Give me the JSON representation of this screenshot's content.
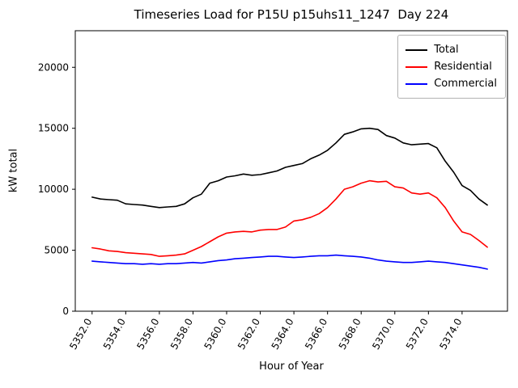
{
  "figure": {
    "title": "Timeseries Load for P15U p15uhs11_1247  Day 224",
    "xlabel": "Hour of Year",
    "ylabel": "kW total"
  },
  "chart_data": {
    "type": "line",
    "title": "Timeseries Load for P15U p15uhs11_1247  Day 224",
    "xlabel": "Hour of Year",
    "ylabel": "kW total",
    "xlim": [
      5351.0,
      5376.7
    ],
    "ylim": [
      0,
      23000
    ],
    "grid": false,
    "legend_position": "upper right",
    "xticks": [
      5352,
      5354,
      5356,
      5358,
      5360,
      5362,
      5364,
      5366,
      5368,
      5370,
      5372,
      5374
    ],
    "xtick_labels": [
      "5352.0",
      "5354.0",
      "5356.0",
      "5358.0",
      "5360.0",
      "5362.0",
      "5364.0",
      "5366.0",
      "5368.0",
      "5370.0",
      "5372.0",
      "5374.0"
    ],
    "yticks": [
      0,
      5000,
      10000,
      15000,
      20000
    ],
    "ytick_labels": [
      "0",
      "5000",
      "10000",
      "15000",
      "20000"
    ],
    "x": [
      5352.0,
      5352.5,
      5353.0,
      5353.5,
      5354.0,
      5354.5,
      5355.0,
      5355.5,
      5356.0,
      5356.5,
      5357.0,
      5357.5,
      5358.0,
      5358.5,
      5359.0,
      5359.5,
      5360.0,
      5360.5,
      5361.0,
      5361.5,
      5362.0,
      5362.5,
      5363.0,
      5363.5,
      5364.0,
      5364.5,
      5365.0,
      5365.5,
      5366.0,
      5366.5,
      5367.0,
      5367.5,
      5368.0,
      5368.5,
      5369.0,
      5369.5,
      5370.0,
      5370.5,
      5371.0,
      5371.5,
      5372.0,
      5372.5,
      5373.0,
      5373.5,
      5374.0,
      5374.5,
      5375.0,
      5375.5
    ],
    "series": [
      {
        "name": "Total",
        "color": "#000000",
        "values": [
          9350,
          9200,
          9150,
          9100,
          8800,
          8750,
          8700,
          8600,
          8500,
          8550,
          8600,
          8800,
          9300,
          9600,
          10500,
          10700,
          11000,
          11100,
          11250,
          11150,
          11200,
          11350,
          11500,
          11800,
          11950,
          12100,
          12500,
          12800,
          13200,
          13800,
          14500,
          14700,
          14950,
          15000,
          14900,
          14400,
          14200,
          13800,
          13650,
          13700,
          13750,
          13400,
          12300,
          11400,
          10300,
          9900,
          9200,
          8700
        ]
      },
      {
        "name": "Residential",
        "color": "#ff0000",
        "values": [
          5200,
          5100,
          4950,
          4900,
          4800,
          4750,
          4700,
          4650,
          4500,
          4550,
          4600,
          4700,
          5000,
          5300,
          5700,
          6100,
          6400,
          6500,
          6550,
          6500,
          6650,
          6700,
          6700,
          6900,
          7400,
          7500,
          7700,
          8000,
          8500,
          9200,
          10000,
          10200,
          10500,
          10700,
          10600,
          10650,
          10200,
          10100,
          9700,
          9600,
          9700,
          9300,
          8500,
          7400,
          6500,
          6300,
          5800,
          5250
        ]
      },
      {
        "name": "Commercial",
        "color": "#0000ff",
        "values": [
          4100,
          4050,
          4000,
          3950,
          3900,
          3900,
          3850,
          3900,
          3850,
          3900,
          3900,
          3950,
          4000,
          3950,
          4050,
          4150,
          4200,
          4300,
          4350,
          4400,
          4450,
          4500,
          4500,
          4450,
          4400,
          4450,
          4500,
          4550,
          4550,
          4600,
          4550,
          4500,
          4450,
          4350,
          4200,
          4100,
          4050,
          4000,
          4000,
          4050,
          4100,
          4050,
          4000,
          3900,
          3800,
          3700,
          3600,
          3450
        ]
      }
    ]
  }
}
